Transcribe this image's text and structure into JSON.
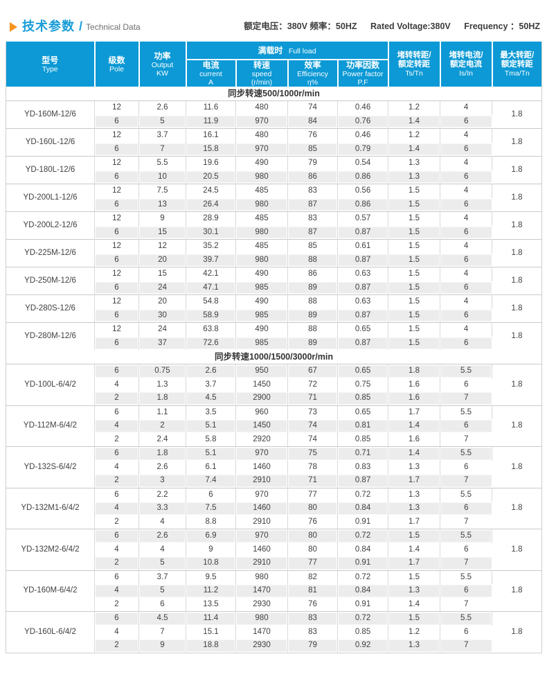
{
  "page": {
    "title_cn": "技术参数 /",
    "title_en": "Technical Data",
    "ratings_cn": "额定电压：380V 频率：50HZ",
    "ratings_en1": "Rated Voltage:380V",
    "ratings_en2": "Frequency ：50HZ"
  },
  "table": {
    "header": {
      "type": [
        "型号",
        "Type"
      ],
      "pole": [
        "级数",
        "Pole"
      ],
      "output": [
        "功率",
        "Output",
        "KW"
      ],
      "full_load": [
        "满载时",
        "Full load"
      ],
      "current": [
        "电流",
        "current",
        "A"
      ],
      "speed": [
        "转速",
        "speed",
        "(r/min)"
      ],
      "efficiency": [
        "效率",
        "Efficiency",
        "η%"
      ],
      "power_factor": [
        "功率因数",
        "Power factor",
        "P.F"
      ],
      "ts_tn": [
        "堵转转距/",
        "额定转距",
        "Ts/Tn"
      ],
      "is_in": [
        "堵转电流/",
        "额定电流",
        "Is/In"
      ],
      "tma_tn": [
        "最大转距/",
        "额定转距",
        "Tma/Tn"
      ]
    },
    "sections": [
      {
        "title": "同步转速500/1000r/min",
        "zebra": "odd",
        "groups": [
          {
            "model": "YD-160M-12/6",
            "tma_tn": "1.8",
            "rows": [
              [
                "12",
                "2.6",
                "11.6",
                "480",
                "74",
                "0.46",
                "1.2",
                "4"
              ],
              [
                "6",
                "5",
                "11.9",
                "970",
                "84",
                "0.76",
                "1.4",
                "6"
              ]
            ]
          },
          {
            "model": "YD-160L-12/6",
            "tma_tn": "1.8",
            "rows": [
              [
                "12",
                "3.7",
                "16.1",
                "480",
                "76",
                "0.46",
                "1.2",
                "4"
              ],
              [
                "6",
                "7",
                "15.8",
                "970",
                "85",
                "0.79",
                "1.4",
                "6"
              ]
            ]
          },
          {
            "model": "YD-180L-12/6",
            "tma_tn": "1.8",
            "rows": [
              [
                "12",
                "5.5",
                "19.6",
                "490",
                "79",
                "0.54",
                "1.3",
                "4"
              ],
              [
                "6",
                "10",
                "20.5",
                "980",
                "86",
                "0.86",
                "1.3",
                "6"
              ]
            ]
          },
          {
            "model": "YD-200L1-12/6",
            "tma_tn": "1.8",
            "rows": [
              [
                "12",
                "7.5",
                "24.5",
                "485",
                "83",
                "0.56",
                "1.5",
                "4"
              ],
              [
                "6",
                "13",
                "26.4",
                "980",
                "87",
                "0.86",
                "1.5",
                "6"
              ]
            ]
          },
          {
            "model": "YD-200L2-12/6",
            "tma_tn": "1.8",
            "rows": [
              [
                "12",
                "9",
                "28.9",
                "485",
                "83",
                "0.57",
                "1.5",
                "4"
              ],
              [
                "6",
                "15",
                "30.1",
                "980",
                "87",
                "0.87",
                "1.5",
                "6"
              ]
            ]
          },
          {
            "model": "YD-225M-12/6",
            "tma_tn": "1.8",
            "rows": [
              [
                "12",
                "12",
                "35.2",
                "485",
                "85",
                "0.61",
                "1.5",
                "4"
              ],
              [
                "6",
                "20",
                "39.7",
                "980",
                "88",
                "0.87",
                "1.5",
                "6"
              ]
            ]
          },
          {
            "model": "YD-250M-12/6",
            "tma_tn": "1.8",
            "rows": [
              [
                "12",
                "15",
                "42.1",
                "490",
                "86",
                "0.63",
                "1.5",
                "4"
              ],
              [
                "6",
                "24",
                "47.1",
                "985",
                "89",
                "0.87",
                "1.5",
                "6"
              ]
            ]
          },
          {
            "model": "YD-280S-12/6",
            "tma_tn": "1.8",
            "rows": [
              [
                "12",
                "20",
                "54.8",
                "490",
                "88",
                "0.63",
                "1.5",
                "4"
              ],
              [
                "6",
                "30",
                "58.9",
                "985",
                "89",
                "0.87",
                "1.5",
                "6"
              ]
            ]
          },
          {
            "model": "YD-280M-12/6",
            "tma_tn": "1.8",
            "rows": [
              [
                "12",
                "24",
                "63.8",
                "490",
                "88",
                "0.65",
                "1.5",
                "4"
              ],
              [
                "6",
                "37",
                "72.6",
                "985",
                "89",
                "0.87",
                "1.5",
                "6"
              ]
            ]
          }
        ]
      },
      {
        "title": "同步转速1000/1500/3000r/min",
        "zebra": "even",
        "groups": [
          {
            "model": "YD-100L-6/4/2",
            "tma_tn": "1.8",
            "rows": [
              [
                "6",
                "0.75",
                "2.6",
                "950",
                "67",
                "0.65",
                "1.8",
                "5.5"
              ],
              [
                "4",
                "1.3",
                "3.7",
                "1450",
                "72",
                "0.75",
                "1.6",
                "6"
              ],
              [
                "2",
                "1.8",
                "4.5",
                "2900",
                "71",
                "0.85",
                "1.6",
                "7"
              ]
            ]
          },
          {
            "model": "YD-112M-6/4/2",
            "tma_tn": "1.8",
            "rows": [
              [
                "6",
                "1.1",
                "3.5",
                "960",
                "73",
                "0.65",
                "1.7",
                "5.5"
              ],
              [
                "4",
                "2",
                "5.1",
                "1450",
                "74",
                "0.81",
                "1.4",
                "6"
              ],
              [
                "2",
                "2.4",
                "5.8",
                "2920",
                "74",
                "0.85",
                "1.6",
                "7"
              ]
            ]
          },
          {
            "model": "YD-132S-6/4/2",
            "tma_tn": "1.8",
            "rows": [
              [
                "6",
                "1.8",
                "5.1",
                "970",
                "75",
                "0.71",
                "1.4",
                "5.5"
              ],
              [
                "4",
                "2.6",
                "6.1",
                "1460",
                "78",
                "0.83",
                "1.3",
                "6"
              ],
              [
                "2",
                "3",
                "7.4",
                "2910",
                "71",
                "0.87",
                "1.7",
                "7"
              ]
            ]
          },
          {
            "model": "YD-132M1-6/4/2",
            "tma_tn": "1.8",
            "rows": [
              [
                "6",
                "2.2",
                "6",
                "970",
                "77",
                "0.72",
                "1.3",
                "5.5"
              ],
              [
                "4",
                "3.3",
                "7.5",
                "1460",
                "80",
                "0.84",
                "1.3",
                "6"
              ],
              [
                "2",
                "4",
                "8.8",
                "2910",
                "76",
                "0.91",
                "1.7",
                "7"
              ]
            ]
          },
          {
            "model": "YD-132M2-6/4/2",
            "tma_tn": "1.8",
            "rows": [
              [
                "6",
                "2.6",
                "6.9",
                "970",
                "80",
                "0.72",
                "1.5",
                "5.5"
              ],
              [
                "4",
                "4",
                "9",
                "1460",
                "80",
                "0.84",
                "1.4",
                "6"
              ],
              [
                "2",
                "5",
                "10.8",
                "2910",
                "77",
                "0.91",
                "1.7",
                "7"
              ]
            ]
          },
          {
            "model": "YD-160M-6/4/2",
            "tma_tn": "1.8",
            "rows": [
              [
                "6",
                "3.7",
                "9.5",
                "980",
                "82",
                "0.72",
                "1.5",
                "5.5"
              ],
              [
                "4",
                "5",
                "11.2",
                "1470",
                "81",
                "0.84",
                "1.3",
                "6"
              ],
              [
                "2",
                "6",
                "13.5",
                "2930",
                "76",
                "0.91",
                "1.4",
                "7"
              ]
            ]
          },
          {
            "model": "YD-160L-6/4/2",
            "tma_tn": "1.8",
            "rows": [
              [
                "6",
                "4.5",
                "11.4",
                "980",
                "83",
                "0.72",
                "1.5",
                "5.5"
              ],
              [
                "4",
                "7",
                "15.1",
                "1470",
                "83",
                "0.85",
                "1.2",
                "6"
              ],
              [
                "2",
                "9",
                "18.8",
                "2930",
                "79",
                "0.92",
                "1.3",
                "7"
              ]
            ]
          }
        ]
      }
    ]
  },
  "colors": {
    "header_blue": "#0c99d5",
    "title_blue": "#189cd8",
    "accent_orange": "#f7941d",
    "zebra_gray": "#ececec"
  }
}
